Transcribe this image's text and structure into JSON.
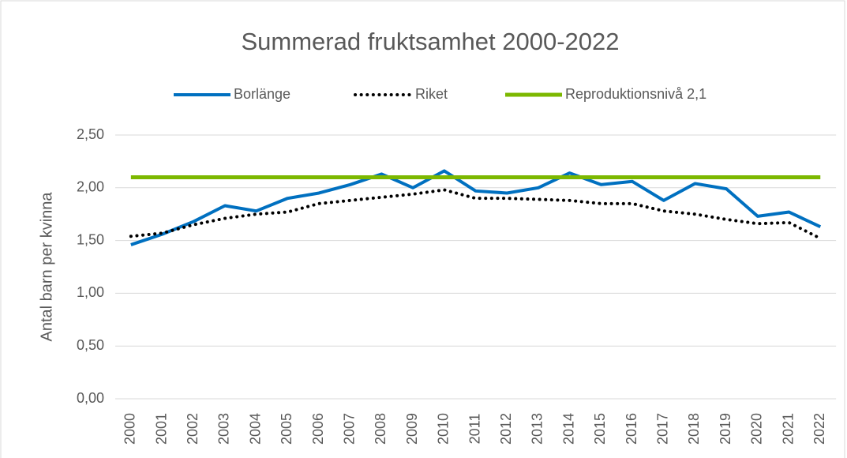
{
  "chart_data": {
    "type": "line",
    "title": "Summerad fruktsamhet 2000-2022",
    "y_label": "Antal barn per kvinna",
    "categories": [
      "2000",
      "2001",
      "2002",
      "2003",
      "2004",
      "2005",
      "2006",
      "2007",
      "2008",
      "2009",
      "2010",
      "2011",
      "2012",
      "2013",
      "2014",
      "2015",
      "2016",
      "2017",
      "2018",
      "2019",
      "2020",
      "2021",
      "2022"
    ],
    "series": [
      {
        "name": "Borlänge",
        "color": "#0070c0",
        "style": "solid",
        "values": [
          1.46,
          1.56,
          1.68,
          1.83,
          1.78,
          1.9,
          1.95,
          2.03,
          2.13,
          2.0,
          2.16,
          1.97,
          1.95,
          2.0,
          2.14,
          2.03,
          2.06,
          1.88,
          2.04,
          1.99,
          1.73,
          1.77,
          1.63
        ]
      },
      {
        "name": "Riket",
        "color": "#000000",
        "style": "dotted",
        "values": [
          1.54,
          1.57,
          1.65,
          1.71,
          1.75,
          1.77,
          1.85,
          1.88,
          1.91,
          1.94,
          1.98,
          1.9,
          1.9,
          1.89,
          1.88,
          1.85,
          1.85,
          1.78,
          1.75,
          1.7,
          1.66,
          1.67,
          1.52
        ]
      },
      {
        "name": "Reproduktionsnivå 2,1",
        "color": "#7cb800",
        "style": "solid",
        "values": [
          2.1,
          2.1,
          2.1,
          2.1,
          2.1,
          2.1,
          2.1,
          2.1,
          2.1,
          2.1,
          2.1,
          2.1,
          2.1,
          2.1,
          2.1,
          2.1,
          2.1,
          2.1,
          2.1,
          2.1,
          2.1,
          2.1,
          2.1
        ]
      }
    ],
    "ylim": [
      0,
      2.5
    ],
    "yticks": [
      {
        "value": 0,
        "label": "0,00"
      },
      {
        "value": 0.5,
        "label": "0,50"
      },
      {
        "value": 1,
        "label": "1,00"
      },
      {
        "value": 1.5,
        "label": "1,50"
      },
      {
        "value": 2,
        "label": "2,00"
      },
      {
        "value": 2.5,
        "label": "2,50"
      }
    ],
    "grid": true,
    "legend": "top"
  }
}
